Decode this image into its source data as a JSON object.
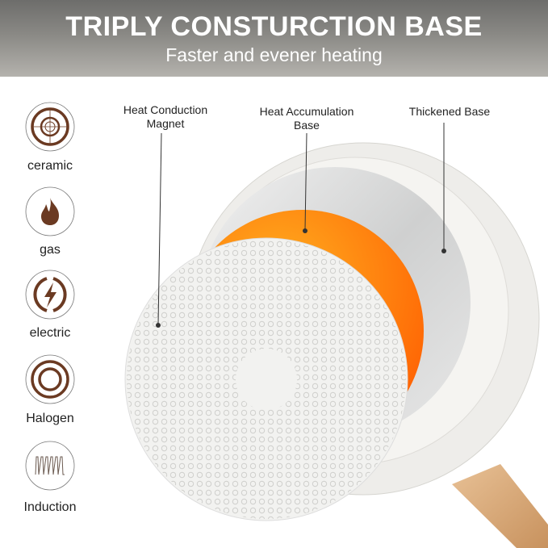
{
  "header": {
    "title": "TRIPLY CONSTURCTION BASE",
    "subtitle": "Faster and evener heating"
  },
  "cooktops": [
    {
      "label": "ceramic",
      "icon": "ceramic-cooktop-icon"
    },
    {
      "label": "gas",
      "icon": "flame-icon"
    },
    {
      "label": "electric",
      "icon": "lightning-icon"
    },
    {
      "label": "Halogen",
      "icon": "halogen-rings-icon"
    },
    {
      "label": "Induction",
      "icon": "induction-coil-icon"
    }
  ],
  "callouts": {
    "magnet_1": "Heat Conduction",
    "magnet_2": "Magnet",
    "accum_1": "Heat Accumulation",
    "accum_2": "Base",
    "thick": "Thickened Base"
  },
  "colors": {
    "icon": "#6b3a22",
    "orange": "#ff7a10",
    "handle": "#d9a878"
  }
}
